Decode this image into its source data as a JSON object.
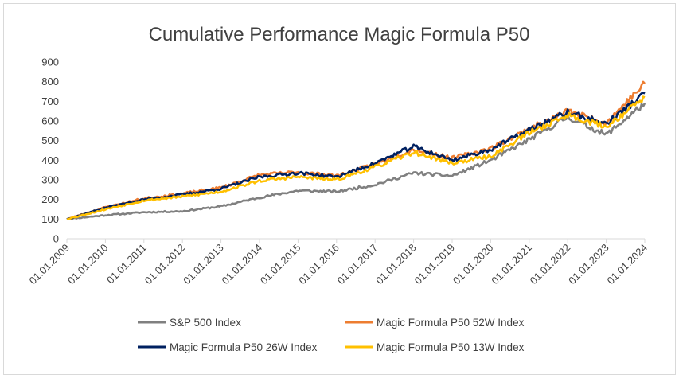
{
  "chart_data": {
    "type": "line",
    "title": "Cumulative Performance Magic Formula P50",
    "xlabel": "",
    "ylabel": "",
    "ylim": [
      0,
      900
    ],
    "yticks": [
      0,
      100,
      200,
      300,
      400,
      500,
      600,
      700,
      800,
      900
    ],
    "x": [
      "01.01.2009",
      "01.01.2010",
      "01.01.2011",
      "01.01.2012",
      "01.01.2013",
      "01.01.2014",
      "01.01.2015",
      "01.01.2016",
      "01.01.2017",
      "01.01.2018",
      "01.01.2019",
      "01.01.2020",
      "01.01.2021",
      "01.01.2022",
      "01.01.2023",
      "01.01.2024"
    ],
    "grid": false,
    "legend_position": "bottom",
    "series": [
      {
        "name": "S&P 500 Index",
        "color": "#808080",
        "values": [
          100,
          120,
          135,
          140,
          165,
          210,
          245,
          240,
          275,
          335,
          320,
          400,
          505,
          620,
          530,
          690
        ]
      },
      {
        "name": "Magic Formula P50 52W Index",
        "color": "#ED7D31",
        "values": [
          100,
          160,
          205,
          230,
          260,
          325,
          340,
          320,
          380,
          455,
          410,
          460,
          560,
          650,
          590,
          790
        ]
      },
      {
        "name": "Magic Formula P50 26W Index",
        "color": "#002060",
        "values": [
          100,
          158,
          200,
          225,
          255,
          315,
          335,
          315,
          385,
          470,
          400,
          455,
          555,
          645,
          585,
          740
        ]
      },
      {
        "name": "Magic Formula P50 13W Index",
        "color": "#FFC000",
        "values": [
          100,
          150,
          195,
          215,
          240,
          295,
          315,
          300,
          365,
          440,
          385,
          420,
          540,
          630,
          570,
          720
        ]
      }
    ]
  }
}
